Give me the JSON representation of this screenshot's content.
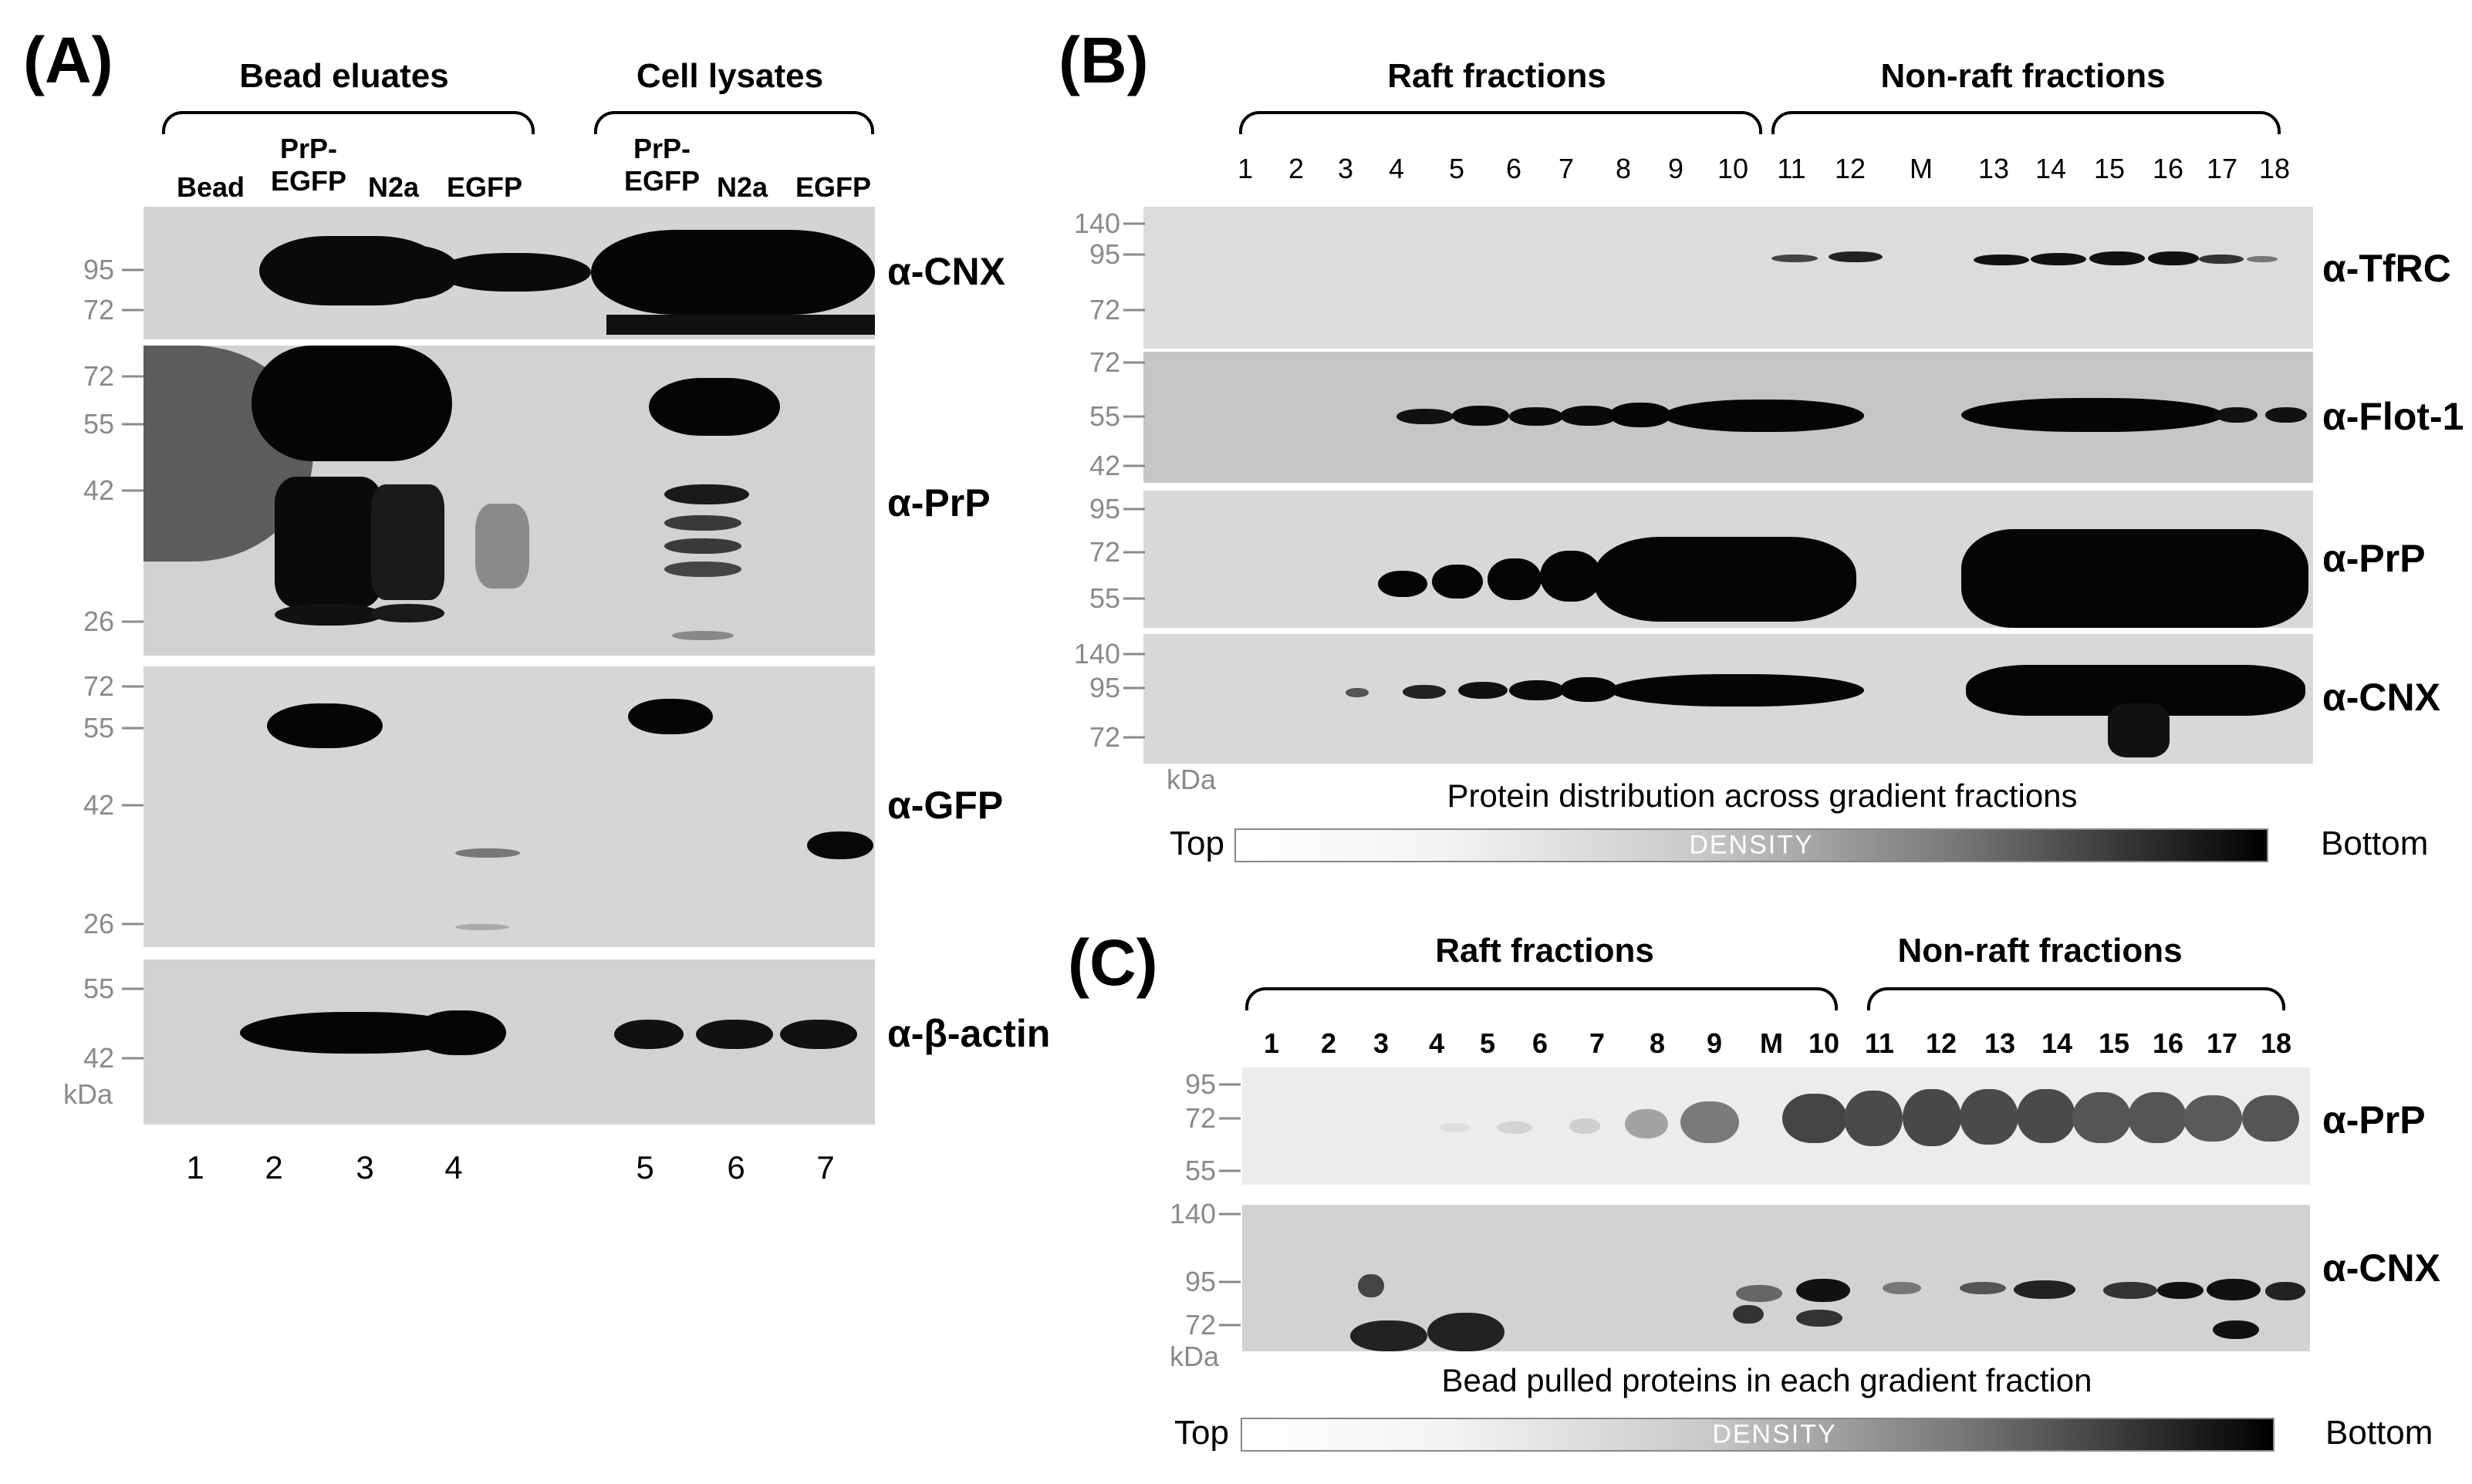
{
  "panel_a": {
    "letter": "(A)",
    "groups": [
      "Bead eluates",
      "Cell lysates"
    ],
    "lanes": [
      "Bead",
      "PrP-\nEGFP",
      "N2a",
      "EGFP",
      "PrP-\nEGFP",
      "N2a",
      "EGFP"
    ],
    "lane_numbers": [
      "1",
      "2",
      "3",
      "4",
      "5",
      "6",
      "7"
    ],
    "unit": "kDa",
    "blots": [
      {
        "antibody": "α-CNX",
        "markers": [
          "95",
          "72"
        ]
      },
      {
        "antibody": "α-PrP",
        "markers": [
          "72",
          "55",
          "42",
          "26"
        ]
      },
      {
        "antibody": "α-GFP",
        "markers": [
          "72",
          "55",
          "42",
          "26"
        ]
      },
      {
        "antibody": "α-β-actin",
        "markers": [
          "55",
          "42"
        ]
      }
    ]
  },
  "panel_b": {
    "letter": "(B)",
    "groups": [
      "Raft fractions",
      "Non-raft fractions"
    ],
    "lanes": [
      "1",
      "2",
      "3",
      "4",
      "5",
      "6",
      "7",
      "8",
      "9",
      "10",
      "11",
      "12",
      "M",
      "13",
      "14",
      "15",
      "16",
      "17",
      "18"
    ],
    "unit": "kDa",
    "blots": [
      {
        "antibody": "α-TfRC",
        "markers": [
          "140",
          "95",
          "72"
        ]
      },
      {
        "antibody": "α-Flot-1",
        "markers": [
          "72",
          "55",
          "42"
        ]
      },
      {
        "antibody": "α-PrP",
        "markers": [
          "95",
          "72",
          "55"
        ]
      },
      {
        "antibody": "α-CNX",
        "markers": [
          "140",
          "95",
          "72"
        ]
      }
    ],
    "caption": "Protein distribution across gradient fractions",
    "gradient": {
      "left": "Top",
      "center": "DENSITY",
      "right": "Bottom"
    }
  },
  "panel_c": {
    "letter": "(C)",
    "groups": [
      "Raft fractions",
      "Non-raft fractions"
    ],
    "lanes": [
      "1",
      "2",
      "3",
      "4",
      "5",
      "6",
      "7",
      "8",
      "9",
      "M",
      "10",
      "11",
      "12",
      "13",
      "14",
      "15",
      "16",
      "17",
      "18"
    ],
    "unit": "kDa",
    "blots": [
      {
        "antibody": "α-PrP",
        "markers": [
          "95",
          "72",
          "55"
        ]
      },
      {
        "antibody": "α-CNX",
        "markers": [
          "140",
          "95",
          "72"
        ]
      }
    ],
    "caption": "Bead pulled proteins in each gradient fraction",
    "gradient": {
      "left": "Top",
      "center": "DENSITY",
      "right": "Bottom"
    }
  }
}
